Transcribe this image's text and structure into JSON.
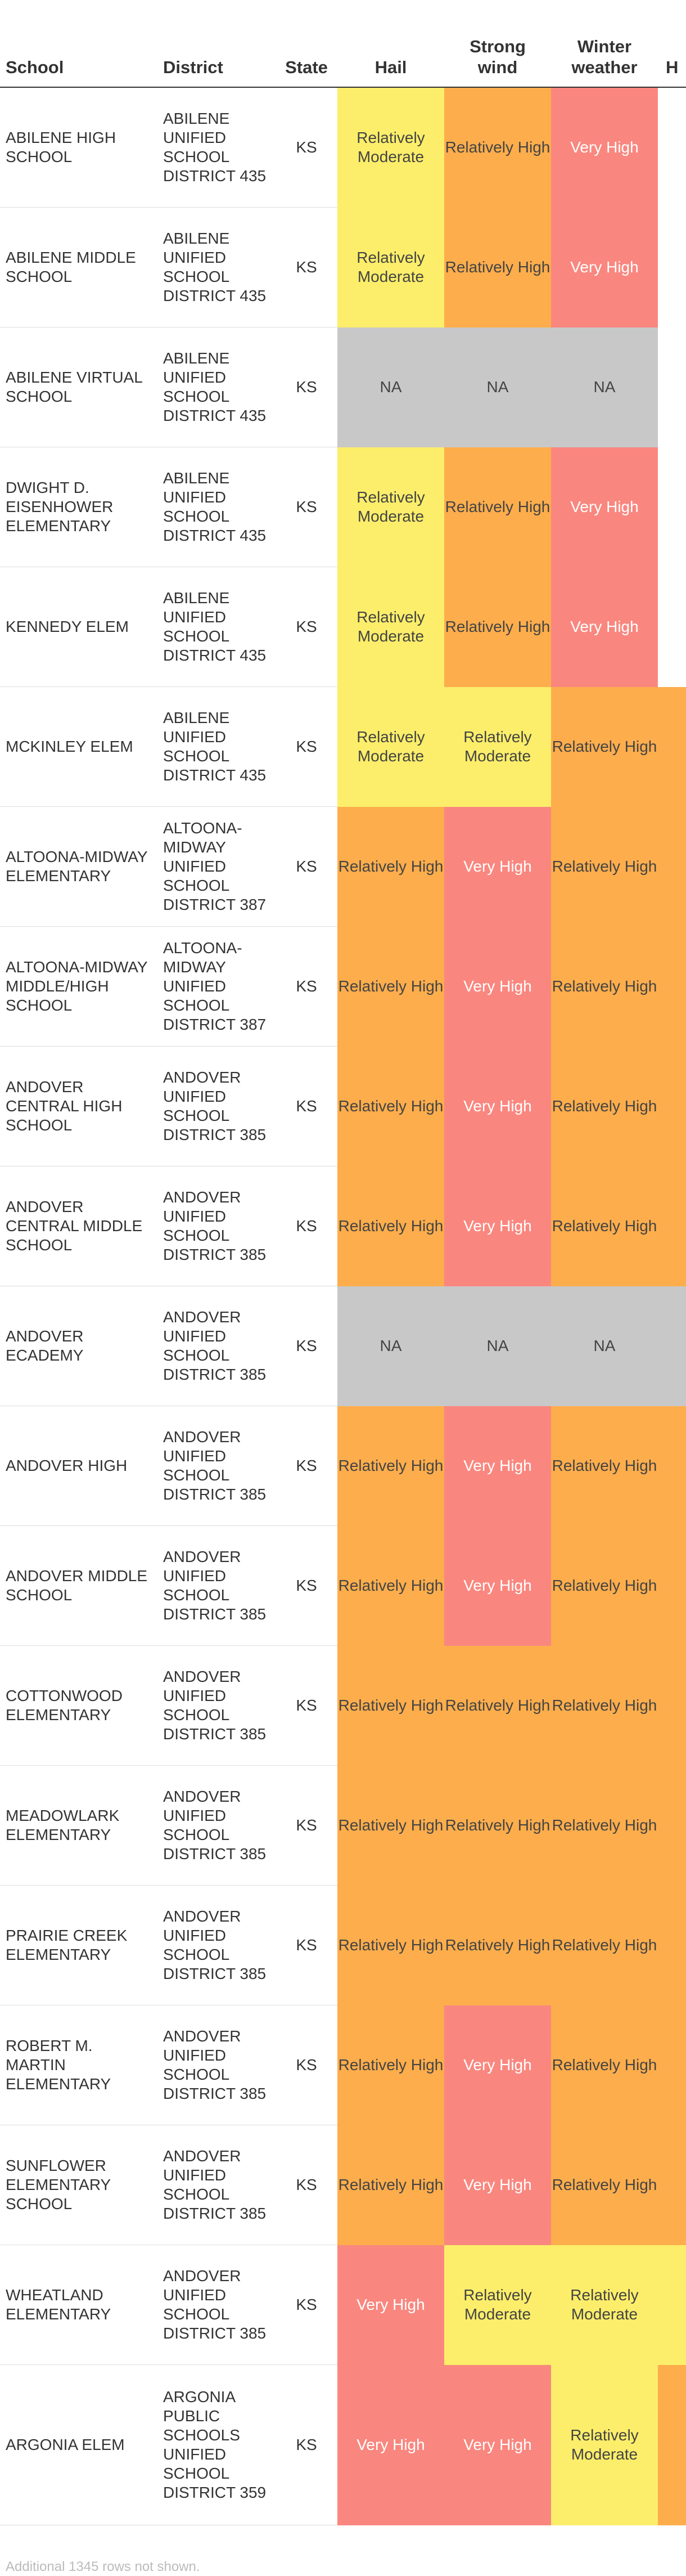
{
  "columns": {
    "school": "School",
    "district": "District",
    "state": "State",
    "hail": "Hail",
    "strong_wind": "Strong wind",
    "winter_weather": "Winter weather",
    "extra": "H"
  },
  "risk_colors": {
    "Relatively Moderate": "#fcee6a",
    "Relatively High": "#fdad4c",
    "Very High": "#f9877f",
    "NA": "#c8c8c8"
  },
  "rows": [
    {
      "school": "Abilene High School",
      "district": "Abilene Unified School District 435",
      "state": "KS",
      "hail": "Relatively Moderate",
      "strong_wind": "Relatively High",
      "winter_weather": "Very High"
    },
    {
      "school": "Abilene Middle School",
      "district": "Abilene Unified School District 435",
      "state": "KS",
      "hail": "Relatively Moderate",
      "strong_wind": "Relatively High",
      "winter_weather": "Very High"
    },
    {
      "school": "Abilene Virtual School",
      "district": "Abilene Unified School District 435",
      "state": "KS",
      "hail": "NA",
      "strong_wind": "NA",
      "winter_weather": "NA"
    },
    {
      "school": "Dwight D. Eisenhower Elementary",
      "district": "Abilene Unified School District 435",
      "state": "KS",
      "hail": "Relatively Moderate",
      "strong_wind": "Relatively High",
      "winter_weather": "Very High"
    },
    {
      "school": "Kennedy Elem",
      "district": "Abilene Unified School District 435",
      "state": "KS",
      "hail": "Relatively Moderate",
      "strong_wind": "Relatively High",
      "winter_weather": "Very High"
    },
    {
      "school": "McKinley Elem",
      "district": "Abilene Unified School District 435",
      "state": "KS",
      "hail": "Relatively Moderate",
      "strong_wind": "Relatively Moderate",
      "winter_weather": "Relatively High"
    },
    {
      "school": "Altoona-Midway Elementary",
      "district": "Altoona-Midway Unified School District 387",
      "state": "KS",
      "hail": "Relatively High",
      "strong_wind": "Very High",
      "winter_weather": "Relatively High"
    },
    {
      "school": "Altoona-Midway Middle/High School",
      "district": "Altoona-Midway Unified School District 387",
      "state": "KS",
      "hail": "Relatively High",
      "strong_wind": "Very High",
      "winter_weather": "Relatively High"
    },
    {
      "school": "Andover Central High School",
      "district": "Andover Unified School District 385",
      "state": "KS",
      "hail": "Relatively High",
      "strong_wind": "Very High",
      "winter_weather": "Relatively High"
    },
    {
      "school": "Andover Central Middle School",
      "district": "Andover Unified School District 385",
      "state": "KS",
      "hail": "Relatively High",
      "strong_wind": "Very High",
      "winter_weather": "Relatively High"
    },
    {
      "school": "Andover eCademy",
      "district": "Andover Unified School District 385",
      "state": "KS",
      "hail": "NA",
      "strong_wind": "NA",
      "winter_weather": "NA"
    },
    {
      "school": "Andover High",
      "district": "Andover Unified School District 385",
      "state": "KS",
      "hail": "Relatively High",
      "strong_wind": "Very High",
      "winter_weather": "Relatively High"
    },
    {
      "school": "Andover Middle School",
      "district": "Andover Unified School District 385",
      "state": "KS",
      "hail": "Relatively High",
      "strong_wind": "Very High",
      "winter_weather": "Relatively High"
    },
    {
      "school": "Cottonwood Elementary",
      "district": "Andover Unified School District 385",
      "state": "KS",
      "hail": "Relatively High",
      "strong_wind": "Relatively High",
      "winter_weather": "Relatively High"
    },
    {
      "school": "Meadowlark Elementary",
      "district": "Andover Unified School District 385",
      "state": "KS",
      "hail": "Relatively High",
      "strong_wind": "Relatively High",
      "winter_weather": "Relatively High"
    },
    {
      "school": "Prairie Creek Elementary",
      "district": "Andover Unified School District 385",
      "state": "KS",
      "hail": "Relatively High",
      "strong_wind": "Relatively High",
      "winter_weather": "Relatively High"
    },
    {
      "school": "Robert M. Martin Elementary",
      "district": "Andover Unified School District 385",
      "state": "KS",
      "hail": "Relatively High",
      "strong_wind": "Very High",
      "winter_weather": "Relatively High"
    },
    {
      "school": "Sunflower Elementary School",
      "district": "Andover Unified School District 385",
      "state": "KS",
      "hail": "Relatively High",
      "strong_wind": "Very High",
      "winter_weather": "Relatively High"
    },
    {
      "school": "Wheatland Elementary",
      "district": "Andover Unified School District 385",
      "state": "KS",
      "hail": "Very High",
      "strong_wind": "Relatively Moderate",
      "winter_weather": "Relatively Moderate"
    },
    {
      "school": "Argonia Elem",
      "district": "Argonia Public Schools Unified School District 359",
      "state": "KS",
      "hail": "Very High",
      "strong_wind": "Very High",
      "winter_weather": "Relatively Moderate"
    }
  ],
  "footnote": "Additional 1345 rows not shown."
}
